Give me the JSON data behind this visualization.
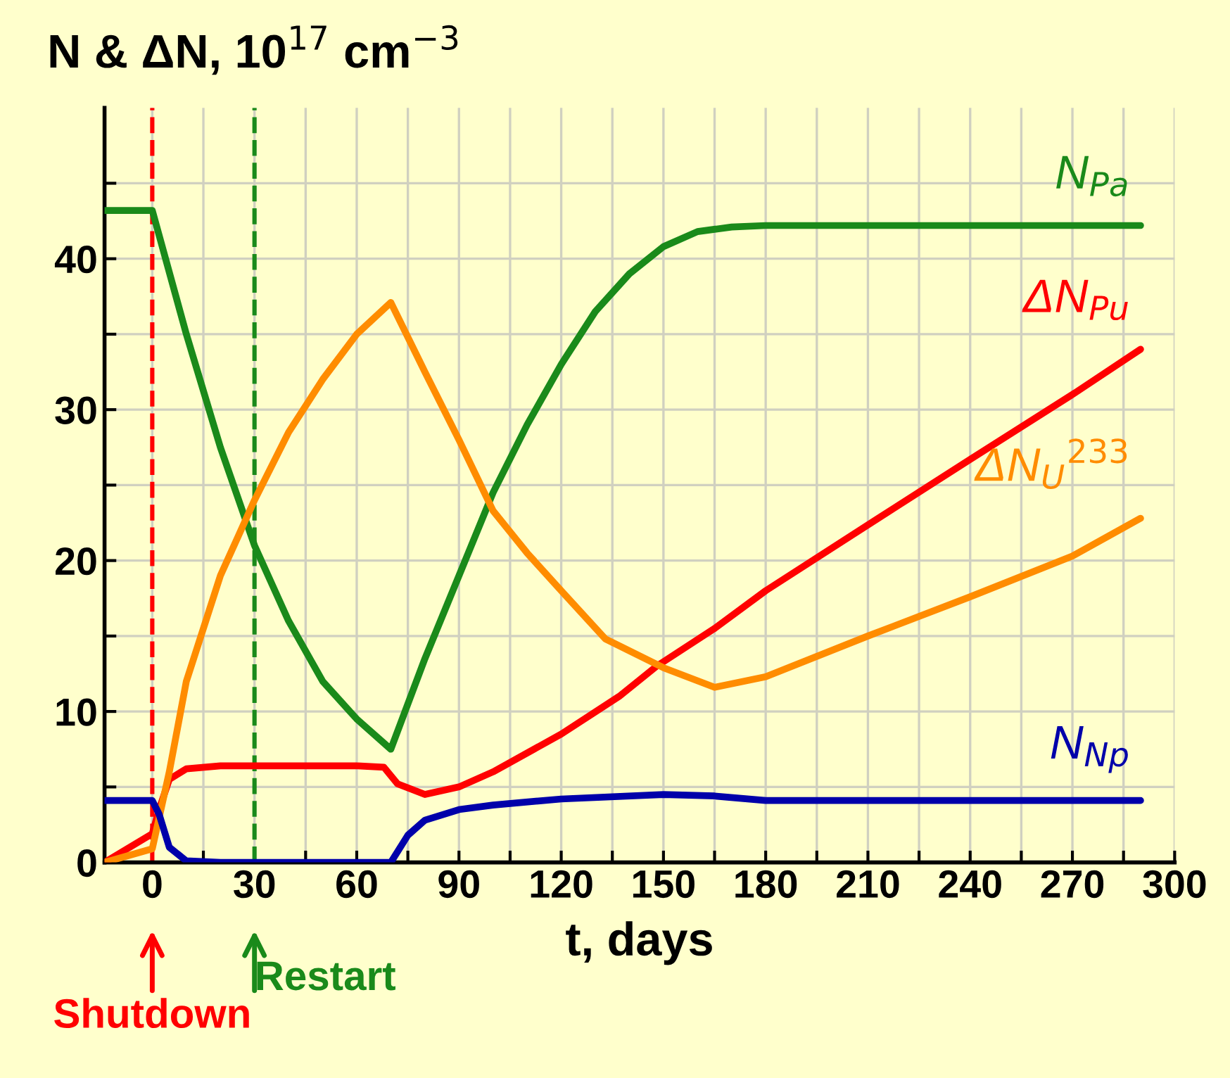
{
  "chart_data": {
    "type": "line",
    "ylabel": "N & ΔN, 10$^{17}$ cm$^{−3}$",
    "xlabel": "t, days",
    "xlim": [
      -14,
      300
    ],
    "ylim": [
      0,
      50
    ],
    "xticks": [
      0,
      {
        "value": 15,
        "label": null
      },
      30,
      {
        "value": 45,
        "label": null
      },
      60,
      {
        "value": 75,
        "label": null
      },
      90,
      {
        "value": 105,
        "label": null
      },
      120,
      {
        "value": 135,
        "label": null
      },
      150,
      {
        "value": 165,
        "label": null
      },
      180,
      {
        "value": 195,
        "label": null
      },
      210,
      {
        "value": 225,
        "label": null
      },
      240,
      {
        "value": 255,
        "label": null
      },
      270,
      {
        "value": 285,
        "label": null
      },
      300
    ],
    "yticks": [
      0,
      {
        "value": 5,
        "label": null
      },
      10,
      {
        "value": 15,
        "label": null
      },
      20,
      {
        "value": 25,
        "label": null
      },
      30,
      {
        "value": 35,
        "label": null
      },
      40,
      {
        "value": 45,
        "label": null
      }
    ],
    "grid": true,
    "legend": false,
    "marker": "none",
    "line_style": "solid",
    "series": [
      {
        "name": "N$_{Pa}$",
        "color": "#1a8a1a",
        "x": [
          -14,
          0,
          10,
          20,
          30,
          40,
          50,
          60,
          70,
          80,
          90,
          100,
          110,
          120,
          130,
          140,
          150,
          160,
          170,
          180,
          290
        ],
        "values": [
          43.2,
          43.2,
          35,
          27.5,
          21,
          16,
          12,
          9.5,
          7.5,
          13.5,
          19,
          24.5,
          29,
          33,
          36.5,
          39,
          40.8,
          41.8,
          42.1,
          42.2,
          42.2
        ]
      },
      {
        "name": "ΔN$_{Pu}$",
        "color": "#ff0000",
        "x": [
          -14,
          0,
          2,
          5,
          10,
          20,
          40,
          60,
          68,
          72,
          80,
          90,
          100,
          120,
          137,
          148,
          165,
          180,
          213,
          240,
          270,
          290
        ],
        "values": [
          0,
          1.9,
          3.5,
          5.5,
          6.2,
          6.4,
          6.4,
          6.4,
          6.3,
          5.2,
          4.5,
          5,
          6,
          8.5,
          11,
          13,
          15.5,
          18,
          22.8,
          26.7,
          31,
          34
        ]
      },
      {
        "name": "ΔN$_{U}$$^{233}$",
        "color": "#ff8c00",
        "x": [
          -14,
          0,
          5,
          10,
          20,
          30,
          40,
          50,
          60,
          70,
          80,
          90,
          100,
          110,
          120,
          133,
          150,
          165,
          180,
          210,
          240,
          270,
          290
        ],
        "values": [
          0,
          0.9,
          6,
          12,
          19,
          24,
          28.5,
          32,
          35,
          37.1,
          32.5,
          28,
          23.3,
          20.5,
          18,
          14.8,
          12.9,
          11.6,
          12.3,
          15,
          17.6,
          20.3,
          22.8
        ]
      },
      {
        "name": "N$_{Np}$",
        "color": "#0000aa",
        "x": [
          -14,
          0,
          2,
          5,
          10,
          20,
          40,
          60,
          70,
          75,
          80,
          90,
          100,
          120,
          150,
          165,
          180,
          290
        ],
        "values": [
          4.1,
          4.1,
          3.2,
          1,
          0.1,
          0,
          0,
          0,
          0,
          1.8,
          2.8,
          3.5,
          3.8,
          4.2,
          4.5,
          4.4,
          4.1,
          4.1
        ]
      }
    ],
    "ref_lines": [
      {
        "axis": "x",
        "value": 0,
        "color": "#ff0000",
        "line_style": "dashed"
      },
      {
        "axis": "x",
        "value": 30,
        "color": "#1a8a1a",
        "line_style": "dashed"
      }
    ],
    "annotations": [
      "Shutdown",
      "Restart"
    ]
  }
}
